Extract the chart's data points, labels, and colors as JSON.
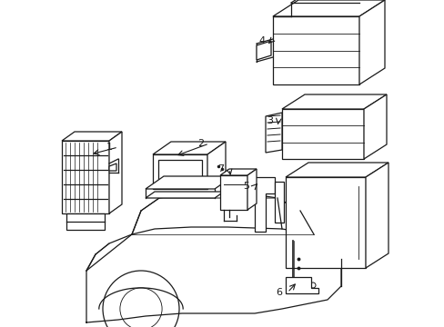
{
  "background_color": "#ffffff",
  "line_color": "#1a1a1a",
  "lw": 0.9,
  "figsize": [
    4.89,
    3.6
  ],
  "dpi": 100
}
